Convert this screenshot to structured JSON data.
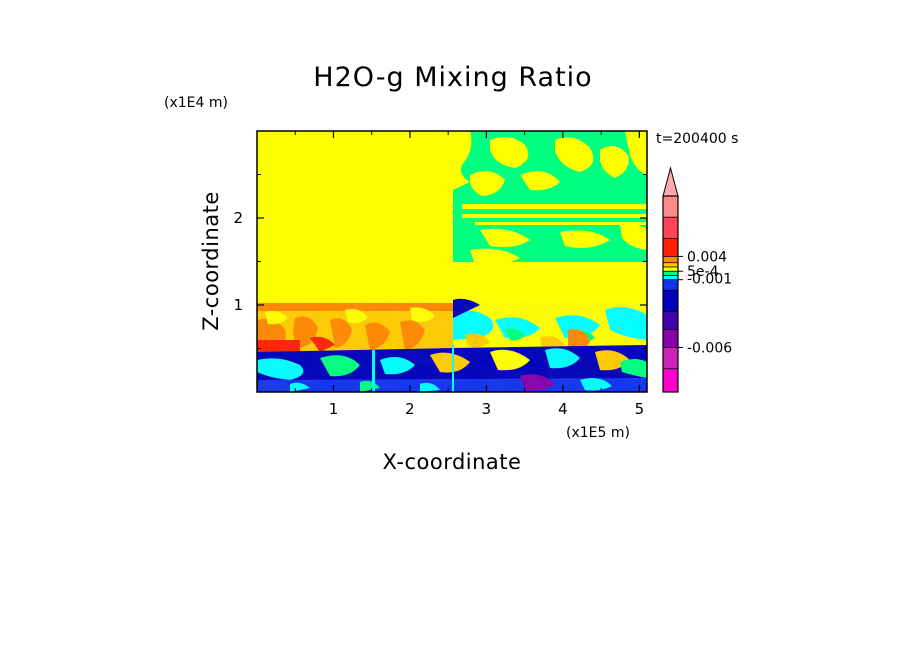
{
  "chart_data": {
    "type": "heatmap",
    "title": "H2O-g Mixing Ratio",
    "xlabel": "X-coordinate",
    "ylabel": "Z-coordinate",
    "x_scale_label": "(x1E5 m)",
    "y_scale_label": "(x1E4 m)",
    "time_label": "t=200400 s",
    "xlim": [
      0,
      5.1
    ],
    "ylim": [
      0,
      3.0
    ],
    "x_ticks": [
      "1",
      "2",
      "3",
      "4",
      "5"
    ],
    "x_tick_values": [
      1,
      2,
      3,
      4,
      5
    ],
    "y_ticks": [
      "1",
      "2"
    ],
    "y_tick_values": [
      1,
      2
    ],
    "colorbar": {
      "tick_labels": [
        "0.004",
        "5e-4",
        "-0.001",
        "-0.006"
      ],
      "levels": [
        -0.01,
        -0.008,
        -0.006,
        -0.004,
        -0.002,
        -0.001,
        -0.0005,
        0,
        0.0005,
        0.001,
        0.002,
        0.004,
        0.006,
        0.008
      ],
      "colors": [
        "#ff00cc",
        "#cc22bb",
        "#8800aa",
        "#4400aa",
        "#0000bb",
        "#1133ee",
        "#00ffff",
        "#00ff80",
        "#ffff00",
        "#ffcc00",
        "#ff8800",
        "#ff2200",
        "#ff4455",
        "#ff8888",
        "#ffaaaa"
      ],
      "extend": "max"
    },
    "regions": [
      {
        "name": "upper-left",
        "x": [
          0,
          2.55
        ],
        "z": [
          1.0,
          3.0
        ],
        "value": 0.0002
      },
      {
        "name": "upper-right-top",
        "x": [
          2.55,
          5.1
        ],
        "z": [
          1.4,
          3.0
        ],
        "value": -0.0003
      },
      {
        "name": "upper-right-mid",
        "x": [
          2.55,
          5.1
        ],
        "z": [
          1.0,
          1.4
        ],
        "value": 0.0002
      },
      {
        "name": "lower-layer",
        "x": [
          0,
          5.1
        ],
        "z": [
          0,
          1.0
        ],
        "value": -0.001
      }
    ]
  }
}
